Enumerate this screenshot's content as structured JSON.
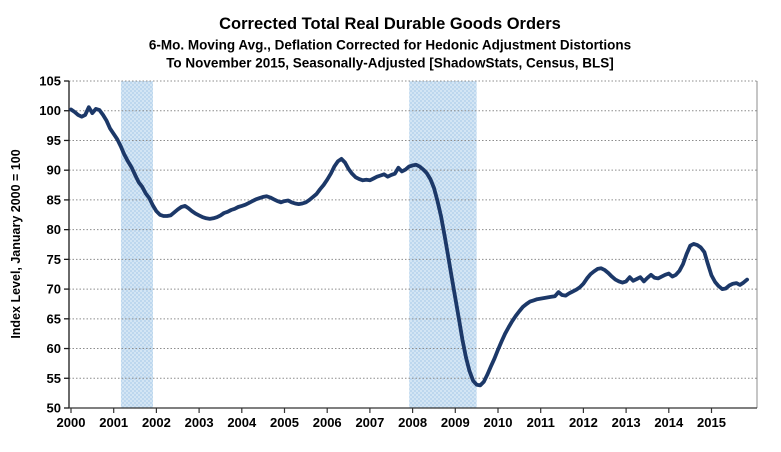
{
  "chart_data": {
    "type": "line",
    "title": "Corrected Total Real Durable Goods Orders",
    "subtitle_line1": "6-Mo. Moving Avg., Deflation Corrected for Hedonic Adjustment Distortions",
    "subtitle_line2": "To November 2015, Seasonally-Adjusted [ShadowStats, Census, BLS]",
    "ylabel": "Index Level, January 2000 = 100",
    "xlabel": "",
    "ylim": [
      50,
      105
    ],
    "ytick_step": 5,
    "yticks": [
      50,
      55,
      60,
      65,
      70,
      75,
      80,
      85,
      90,
      95,
      100,
      105
    ],
    "xticks": [
      2000,
      2001,
      2002,
      2003,
      2004,
      2005,
      2006,
      2007,
      2008,
      2009,
      2010,
      2011,
      2012,
      2013,
      2014,
      2015
    ],
    "x_domain": [
      2000.0,
      2016.05
    ],
    "grid": "horizontal-dotted",
    "legend": "none",
    "line_color": "#1c3868",
    "recession_band_color": "#bdd7ee",
    "recession_bands": [
      {
        "start": 2001.17,
        "end": 2001.92
      },
      {
        "start": 2007.92,
        "end": 2009.5
      }
    ],
    "series": [
      {
        "name": "Corrected Total Real Durable Goods Orders, 6-Mo. Moving Avg.",
        "frequency": "monthly",
        "start": "2000-01",
        "end": "2015-11",
        "values": [
          100.2,
          99.8,
          99.3,
          99.0,
          99.3,
          100.6,
          99.6,
          100.3,
          100.1,
          99.3,
          98.3,
          97.0,
          96.1,
          95.2,
          94.0,
          92.6,
          91.5,
          90.5,
          89.2,
          88.0,
          87.2,
          86.1,
          85.3,
          84.1,
          83.1,
          82.5,
          82.3,
          82.3,
          82.4,
          82.9,
          83.4,
          83.8,
          84.0,
          83.6,
          83.1,
          82.7,
          82.4,
          82.1,
          81.9,
          81.8,
          81.9,
          82.1,
          82.4,
          82.8,
          83.0,
          83.3,
          83.5,
          83.8,
          84.0,
          84.2,
          84.5,
          84.8,
          85.1,
          85.3,
          85.5,
          85.6,
          85.4,
          85.1,
          84.8,
          84.6,
          84.8,
          84.9,
          84.6,
          84.4,
          84.3,
          84.4,
          84.6,
          85.0,
          85.5,
          86.0,
          86.8,
          87.5,
          88.4,
          89.4,
          90.6,
          91.5,
          91.9,
          91.3,
          90.2,
          89.4,
          88.8,
          88.5,
          88.3,
          88.4,
          88.3,
          88.6,
          88.9,
          89.1,
          89.3,
          88.9,
          89.2,
          89.4,
          90.4,
          89.8,
          90.1,
          90.6,
          90.8,
          90.9,
          90.6,
          90.1,
          89.5,
          88.5,
          87.0,
          84.8,
          82.2,
          79.0,
          75.5,
          72.0,
          68.5,
          65.0,
          61.5,
          58.5,
          56.2,
          54.6,
          53.9,
          53.8,
          54.4,
          55.6,
          57.0,
          58.3,
          59.8,
          61.2,
          62.5,
          63.6,
          64.6,
          65.5,
          66.3,
          67.0,
          67.5,
          67.9,
          68.1,
          68.3,
          68.4,
          68.5,
          68.6,
          68.7,
          68.8,
          69.5,
          69.0,
          68.9,
          69.3,
          69.6,
          69.9,
          70.3,
          70.9,
          71.8,
          72.5,
          73.0,
          73.4,
          73.5,
          73.2,
          72.7,
          72.1,
          71.6,
          71.3,
          71.1,
          71.3,
          72.0,
          71.4,
          71.7,
          72.0,
          71.3,
          71.9,
          72.4,
          71.9,
          71.8,
          72.1,
          72.4,
          72.6,
          72.1,
          72.4,
          73.1,
          74.2,
          75.9,
          77.3,
          77.6,
          77.4,
          77.0,
          76.2,
          74.2,
          72.3,
          71.2,
          70.5,
          70.0,
          70.1,
          70.6,
          70.9,
          71.0,
          70.7,
          71.1,
          71.6
        ]
      }
    ]
  }
}
